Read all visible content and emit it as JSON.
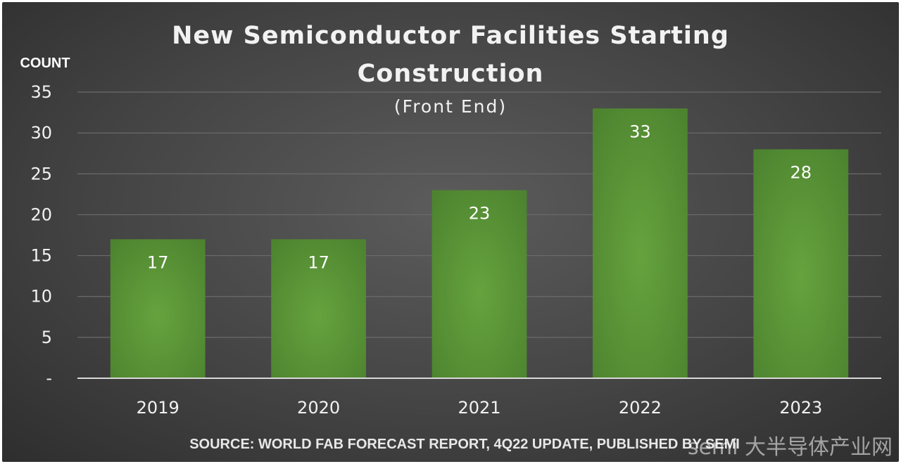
{
  "chart_data": {
    "type": "bar",
    "title": "New Semiconductor Facilities Starting Construction",
    "title_lines": [
      "New Semiconductor Facilities Starting",
      "Construction"
    ],
    "subtitle": "(Front End)",
    "xlabel": "",
    "ylabel": "COUNT",
    "categories": [
      "2019",
      "2020",
      "2021",
      "2022",
      "2023"
    ],
    "values": [
      17,
      17,
      23,
      33,
      28
    ],
    "ylim": [
      0,
      35
    ],
    "yticks": [
      0,
      5,
      10,
      15,
      20,
      25,
      30,
      35
    ],
    "ytick_labels": [
      "-",
      "5",
      "10",
      "15",
      "20",
      "25",
      "30",
      "35"
    ],
    "grid": true,
    "data_labels": true,
    "colors": {
      "bar": "#5e9a3a",
      "bar_dark": "#4b7f2d",
      "background": "#444444",
      "grid": "#6a6a6a"
    },
    "source": "SOURCE: WORLD FAB FORECAST REPORT, 4Q22 UPDATE, PUBLISHED BY SEMI"
  },
  "watermark": "semi 大半导体产业网"
}
